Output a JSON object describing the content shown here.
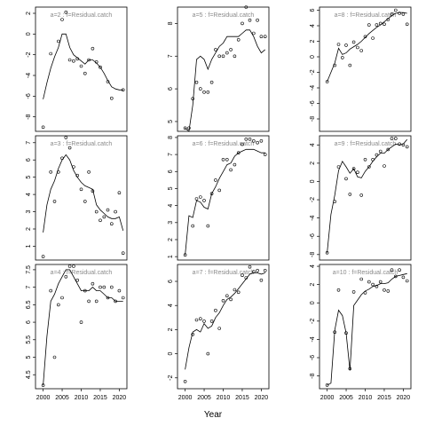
{
  "figure": {
    "xlabel": "Year"
  },
  "chart_data": [
    {
      "type": "scatter",
      "title": "a=2 :  f=Residual.catch",
      "xlim": [
        1998,
        2022
      ],
      "ylim": [
        -9.4,
        2.6
      ],
      "yticks": [
        2,
        0,
        -2,
        -4,
        -6,
        -8
      ],
      "x": [
        2000,
        2001,
        2002,
        2003,
        2004,
        2005,
        2006,
        2007,
        2008,
        2009,
        2010,
        2011,
        2012,
        2013,
        2014,
        2015,
        2016,
        2017,
        2018,
        2019,
        2020,
        2021
      ],
      "obs": [
        -9.0,
        null,
        -1.9,
        null,
        -0.7,
        1.4,
        2.1,
        -2.5,
        -2.6,
        -2.4,
        -3.1,
        -3.8,
        -2.5,
        -1.4,
        -2.7,
        -3.2,
        null,
        -4.6,
        -6.2,
        null,
        null,
        -5.4
      ],
      "fit": [
        -6.3,
        -4.7,
        -3.3,
        -2.2,
        -1.3,
        0.0,
        0.0,
        -1.3,
        -2.0,
        -2.3,
        -2.6,
        -2.9,
        -2.5,
        -2.5,
        -2.8,
        -3.2,
        -3.8,
        -4.5,
        -5.1,
        -5.3,
        -5.4,
        -5.4
      ],
      "xticks": [
        2000,
        2005,
        2010,
        2015,
        2020
      ]
    },
    {
      "type": "scatter",
      "title": "a=5 :  f=Residual.catch",
      "xlim": [
        1998,
        2022
      ],
      "ylim": [
        4.7,
        8.5
      ],
      "yticks": [
        8,
        7,
        6,
        5
      ],
      "x": [
        2000,
        2001,
        2002,
        2003,
        2004,
        2005,
        2006,
        2007,
        2008,
        2009,
        2010,
        2011,
        2012,
        2013,
        2014,
        2015,
        2016,
        2017,
        2018,
        2019,
        2020,
        2021
      ],
      "obs": [
        4.8,
        4.8,
        5.7,
        6.2,
        6.0,
        5.9,
        5.9,
        6.2,
        7.2,
        7.0,
        7.0,
        7.1,
        7.2,
        7.0,
        7.5,
        8.0,
        8.5,
        8.1,
        7.7,
        8.1,
        7.6,
        7.6
      ],
      "fit": [
        4.8,
        4.7,
        5.5,
        6.9,
        7.0,
        6.9,
        6.6,
        6.9,
        7.1,
        7.3,
        7.4,
        7.6,
        7.6,
        7.6,
        7.6,
        7.7,
        7.8,
        7.8,
        7.6,
        7.3,
        7.1,
        7.2
      ],
      "xticks": [
        2000,
        2005,
        2010,
        2015,
        2020
      ]
    },
    {
      "type": "scatter",
      "title": "a=8 :  f=Residual.catch",
      "xlim": [
        1998,
        2022
      ],
      "ylim": [
        -9.6,
        6.4
      ],
      "yticks": [
        6,
        4,
        2,
        0,
        -2,
        -4,
        -6,
        -8
      ],
      "x": [
        2000,
        2001,
        2002,
        2003,
        2004,
        2005,
        2006,
        2007,
        2008,
        2009,
        2010,
        2011,
        2012,
        2013,
        2014,
        2015,
        2016,
        2017,
        2018,
        2019,
        2020,
        2021
      ],
      "obs": [
        -3.2,
        null,
        -1.1,
        1.6,
        -0.1,
        1.5,
        -1.1,
        1.9,
        1.2,
        0.8,
        2.6,
        4.1,
        2.4,
        4.1,
        4.3,
        4.2,
        4.8,
        5.5,
        6.0,
        5.6,
        5.5,
        4.2
      ],
      "fit": [
        -3.2,
        -2.0,
        -0.8,
        1.1,
        0.3,
        0.5,
        1.0,
        1.3,
        1.6,
        2.0,
        2.5,
        3.0,
        3.4,
        3.8,
        4.1,
        4.5,
        4.9,
        5.3,
        5.6,
        5.7,
        5.7,
        5.6
      ],
      "xticks": [
        2000,
        2005,
        2010,
        2015,
        2020
      ]
    },
    {
      "type": "scatter",
      "title": "a=3 :  f=Residual.catch",
      "xlim": [
        1998,
        2022
      ],
      "ylim": [
        0.2,
        7.4
      ],
      "yticks": [
        7,
        6,
        5,
        4,
        3,
        2,
        1
      ],
      "x": [
        2000,
        2001,
        2002,
        2003,
        2004,
        2005,
        2006,
        2007,
        2008,
        2009,
        2010,
        2011,
        2012,
        2013,
        2014,
        2015,
        2016,
        2017,
        2018,
        2019,
        2020,
        2021
      ],
      "obs": [
        0.4,
        null,
        5.3,
        3.6,
        5.3,
        6.1,
        7.3,
        6.7,
        5.6,
        5.1,
        4.3,
        3.6,
        5.3,
        4.2,
        3.0,
        2.5,
        2.7,
        3.1,
        2.3,
        3.0,
        4.1,
        0.6
      ],
      "fit": [
        1.8,
        3.4,
        4.3,
        4.8,
        5.5,
        6.0,
        6.3,
        6.0,
        5.4,
        5.0,
        4.7,
        4.5,
        4.4,
        4.3,
        3.4,
        3.1,
        2.9,
        2.7,
        2.6,
        2.6,
        2.7,
        1.9
      ],
      "xticks": [
        2000,
        2005,
        2010,
        2015,
        2020
      ]
    },
    {
      "type": "scatter",
      "title": "a=6 :  f=Residual.catch",
      "xlim": [
        1998,
        2022
      ],
      "ylim": [
        0.8,
        8.1
      ],
      "yticks": [
        8,
        7,
        6,
        5,
        4,
        3,
        2,
        1
      ],
      "x": [
        2000,
        2001,
        2002,
        2003,
        2004,
        2005,
        2006,
        2007,
        2008,
        2009,
        2010,
        2011,
        2012,
        2013,
        2014,
        2015,
        2016,
        2017,
        2018,
        2019,
        2020,
        2021
      ],
      "obs": [
        1.1,
        null,
        2.8,
        4.4,
        4.5,
        4.3,
        2.8,
        4.7,
        5.5,
        4.9,
        6.7,
        6.7,
        6.1,
        6.4,
        7.1,
        7.6,
        7.9,
        7.9,
        7.8,
        7.7,
        7.8,
        7.0
      ],
      "fit": [
        1.1,
        3.4,
        3.3,
        4.3,
        4.2,
        3.9,
        3.8,
        4.7,
        5.1,
        5.6,
        6.0,
        6.4,
        6.5,
        6.9,
        7.1,
        7.2,
        7.3,
        7.3,
        7.3,
        7.2,
        7.1,
        7.1
      ],
      "xticks": [
        2000,
        2005,
        2010,
        2015,
        2020
      ]
    },
    {
      "type": "scatter",
      "title": "a=9 :  f=Residual.catch",
      "xlim": [
        1998,
        2022
      ],
      "ylim": [
        -8.6,
        5.0
      ],
      "yticks": [
        4,
        2,
        0,
        -2,
        -4,
        -6,
        -8
      ],
      "x": [
        2000,
        2001,
        2002,
        2003,
        2004,
        2005,
        2006,
        2007,
        2008,
        2009,
        2010,
        2011,
        2012,
        2013,
        2014,
        2015,
        2016,
        2017,
        2018,
        2019,
        2020,
        2021
      ],
      "obs": [
        -7.8,
        null,
        -2.2,
        1.6,
        null,
        0.3,
        -1.4,
        1.4,
        1.0,
        -1.5,
        2.4,
        1.6,
        2.4,
        2.9,
        3.3,
        1.7,
        3.5,
        4.7,
        4.7,
        4.1,
        4.0,
        3.8
      ],
      "fit": [
        -7.8,
        -3.6,
        -1.5,
        1.2,
        2.2,
        1.6,
        0.9,
        1.4,
        0.5,
        0.4,
        1.1,
        1.6,
        2.2,
        2.7,
        3.1,
        3.1,
        3.5,
        3.8,
        4.1,
        4.0,
        4.1,
        4.6
      ],
      "xticks": [
        2000,
        2005,
        2010,
        2015,
        2020
      ]
    },
    {
      "type": "scatter",
      "title": "a=4 :  f=Residual.catch",
      "xlim": [
        1998,
        2022
      ],
      "ylim": [
        4.1,
        7.65
      ],
      "yticks": [
        7.5,
        7.0,
        6.5,
        6.0,
        5.5,
        5.0,
        4.5
      ],
      "x": [
        2000,
        2001,
        2002,
        2003,
        2004,
        2005,
        2006,
        2007,
        2008,
        2009,
        2010,
        2011,
        2012,
        2013,
        2014,
        2015,
        2016,
        2017,
        2018,
        2019,
        2020,
        2021
      ],
      "obs": [
        4.2,
        null,
        6.9,
        5.0,
        6.5,
        6.7,
        7.3,
        7.6,
        7.6,
        7.2,
        6.0,
        6.9,
        6.6,
        7.1,
        6.6,
        7.0,
        7.0,
        6.7,
        7.0,
        6.6,
        6.9,
        6.7
      ],
      "fit": [
        4.2,
        5.6,
        6.6,
        6.8,
        7.1,
        7.3,
        7.5,
        7.5,
        7.3,
        7.1,
        6.9,
        6.9,
        6.9,
        7.0,
        6.9,
        6.9,
        6.8,
        6.7,
        6.7,
        6.6,
        6.6,
        6.6
      ],
      "xticks": [
        2000,
        2005,
        2010,
        2015,
        2020
      ]
    },
    {
      "type": "scatter",
      "title": "a=7 :  f=Residual.catch",
      "xlim": [
        1998,
        2022
      ],
      "ylim": [
        -2.9,
        7.4
      ],
      "yticks": [
        6,
        4,
        2,
        0,
        -2
      ],
      "x": [
        2000,
        2001,
        2002,
        2003,
        2004,
        2005,
        2006,
        2007,
        2008,
        2009,
        2010,
        2011,
        2012,
        2013,
        2014,
        2015,
        2016,
        2017,
        2018,
        2019,
        2020,
        2021
      ],
      "obs": [
        -2.3,
        null,
        1.6,
        2.8,
        2.9,
        2.7,
        0.0,
        2.7,
        3.6,
        2.1,
        4.4,
        4.8,
        4.5,
        5.3,
        5.1,
        6.5,
        6.3,
        7.2,
        6.8,
        6.9,
        6.1,
        6.9
      ],
      "fit": [
        -1.3,
        0.5,
        1.8,
        2.0,
        1.8,
        2.5,
        2.1,
        2.3,
        3.0,
        3.4,
        4.0,
        4.5,
        4.7,
        5.0,
        5.4,
        5.8,
        6.2,
        6.6,
        6.7,
        6.7,
        6.6,
        6.7
      ],
      "xticks": [
        2000,
        2005,
        2010,
        2015,
        2020
      ]
    },
    {
      "type": "scatter",
      "title": "a=10 :  f=Residual.catch",
      "xlim": [
        1998,
        2022
      ],
      "ylim": [
        -9.4,
        4.2
      ],
      "yticks": [
        4,
        2,
        0,
        -2,
        -4,
        -6,
        -8
      ],
      "x": [
        2000,
        2001,
        2002,
        2003,
        2004,
        2005,
        2006,
        2007,
        2008,
        2009,
        2010,
        2011,
        2012,
        2013,
        2014,
        2015,
        2016,
        2017,
        2018,
        2019,
        2020,
        2021
      ],
      "obs": [
        -9.0,
        null,
        -3.2,
        1.4,
        null,
        -3.3,
        -7.2,
        1.2,
        null,
        2.6,
        1.1,
        2.3,
        2.0,
        1.8,
        2.3,
        1.4,
        1.3,
        3.6,
        2.9,
        3.6,
        2.8,
        2.4
      ],
      "fit": [
        -9.0,
        -8.8,
        -3.0,
        -0.8,
        -1.4,
        -3.3,
        -7.4,
        -0.3,
        0.3,
        0.9,
        1.3,
        1.5,
        1.8,
        1.9,
        2.1,
        2.1,
        2.2,
        2.6,
        2.9,
        3.0,
        3.1,
        3.2
      ],
      "xticks": [
        2000,
        2005,
        2010,
        2015,
        2020
      ]
    }
  ]
}
